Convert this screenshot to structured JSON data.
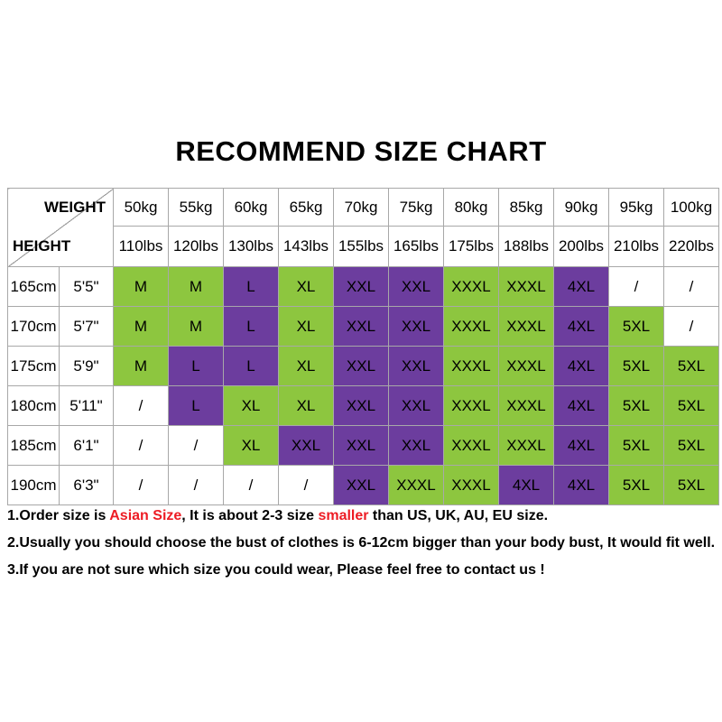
{
  "title": "RECOMMEND SIZE CHART",
  "colors": {
    "green": "#8DC63F",
    "purple": "#6C3D9E",
    "white": "#FFFFFF",
    "border": "#A8A8A8",
    "red": "#ED1C24",
    "text": "#000000"
  },
  "table": {
    "corner": {
      "top_label": "WEIGHT",
      "bottom_label": "HEIGHT"
    },
    "weight_kg": [
      "50kg",
      "55kg",
      "60kg",
      "65kg",
      "70kg",
      "75kg",
      "80kg",
      "85kg",
      "90kg",
      "95kg",
      "100kg"
    ],
    "weight_lbs": [
      "110lbs",
      "120lbs",
      "130lbs",
      "143lbs",
      "155lbs",
      "165lbs",
      "175lbs",
      "188lbs",
      "200lbs",
      "210lbs",
      "220lbs"
    ],
    "rows": [
      {
        "height_cm": "165cm",
        "height_ft": "5'5\"",
        "cells": [
          {
            "label": "M",
            "color": "green"
          },
          {
            "label": "M",
            "color": "green"
          },
          {
            "label": "L",
            "color": "purple"
          },
          {
            "label": "XL",
            "color": "green"
          },
          {
            "label": "XXL",
            "color": "purple"
          },
          {
            "label": "XXL",
            "color": "purple"
          },
          {
            "label": "XXXL",
            "color": "green"
          },
          {
            "label": "XXXL",
            "color": "green"
          },
          {
            "label": "4XL",
            "color": "purple"
          },
          {
            "label": "/",
            "color": "white"
          },
          {
            "label": "/",
            "color": "white"
          }
        ]
      },
      {
        "height_cm": "170cm",
        "height_ft": "5'7\"",
        "cells": [
          {
            "label": "M",
            "color": "green"
          },
          {
            "label": "M",
            "color": "green"
          },
          {
            "label": "L",
            "color": "purple"
          },
          {
            "label": "XL",
            "color": "green"
          },
          {
            "label": "XXL",
            "color": "purple"
          },
          {
            "label": "XXL",
            "color": "purple"
          },
          {
            "label": "XXXL",
            "color": "green"
          },
          {
            "label": "XXXL",
            "color": "green"
          },
          {
            "label": "4XL",
            "color": "purple"
          },
          {
            "label": "5XL",
            "color": "green"
          },
          {
            "label": "/",
            "color": "white"
          }
        ]
      },
      {
        "height_cm": "175cm",
        "height_ft": "5'9\"",
        "cells": [
          {
            "label": "M",
            "color": "green"
          },
          {
            "label": "L",
            "color": "purple"
          },
          {
            "label": "L",
            "color": "purple"
          },
          {
            "label": "XL",
            "color": "green"
          },
          {
            "label": "XXL",
            "color": "purple"
          },
          {
            "label": "XXL",
            "color": "purple"
          },
          {
            "label": "XXXL",
            "color": "green"
          },
          {
            "label": "XXXL",
            "color": "green"
          },
          {
            "label": "4XL",
            "color": "purple"
          },
          {
            "label": "5XL",
            "color": "green"
          },
          {
            "label": "5XL",
            "color": "green"
          }
        ]
      },
      {
        "height_cm": "180cm",
        "height_ft": "5'11\"",
        "cells": [
          {
            "label": "/",
            "color": "white"
          },
          {
            "label": "L",
            "color": "purple"
          },
          {
            "label": "XL",
            "color": "green"
          },
          {
            "label": "XL",
            "color": "green"
          },
          {
            "label": "XXL",
            "color": "purple"
          },
          {
            "label": "XXL",
            "color": "purple"
          },
          {
            "label": "XXXL",
            "color": "green"
          },
          {
            "label": "XXXL",
            "color": "green"
          },
          {
            "label": "4XL",
            "color": "purple"
          },
          {
            "label": "5XL",
            "color": "green"
          },
          {
            "label": "5XL",
            "color": "green"
          }
        ]
      },
      {
        "height_cm": "185cm",
        "height_ft": "6'1\"",
        "cells": [
          {
            "label": "/",
            "color": "white"
          },
          {
            "label": "/",
            "color": "white"
          },
          {
            "label": "XL",
            "color": "green"
          },
          {
            "label": "XXL",
            "color": "purple"
          },
          {
            "label": "XXL",
            "color": "purple"
          },
          {
            "label": "XXL",
            "color": "purple"
          },
          {
            "label": "XXXL",
            "color": "green"
          },
          {
            "label": "XXXL",
            "color": "green"
          },
          {
            "label": "4XL",
            "color": "purple"
          },
          {
            "label": "5XL",
            "color": "green"
          },
          {
            "label": "5XL",
            "color": "green"
          }
        ]
      },
      {
        "height_cm": "190cm",
        "height_ft": "6'3\"",
        "cells": [
          {
            "label": "/",
            "color": "white"
          },
          {
            "label": "/",
            "color": "white"
          },
          {
            "label": "/",
            "color": "white"
          },
          {
            "label": "/",
            "color": "white"
          },
          {
            "label": "XXL",
            "color": "purple"
          },
          {
            "label": "XXXL",
            "color": "green"
          },
          {
            "label": "XXXL",
            "color": "green"
          },
          {
            "label": "4XL",
            "color": "purple"
          },
          {
            "label": "4XL",
            "color": "purple"
          },
          {
            "label": "5XL",
            "color": "green"
          },
          {
            "label": "5XL",
            "color": "green"
          }
        ]
      }
    ]
  },
  "notes": [
    {
      "segments": [
        {
          "text": "1.Order size is ",
          "color": "black"
        },
        {
          "text": "Asian Size",
          "color": "red"
        },
        {
          "text": ", It is about 2-3 size ",
          "color": "black"
        },
        {
          "text": "smaller",
          "color": "red"
        },
        {
          "text": " than US, UK, AU, EU size.",
          "color": "black"
        }
      ]
    },
    {
      "segments": [
        {
          "text": "2.Usually you should choose the bust of clothes is 6-12cm bigger than your body bust, It would fit well.",
          "color": "black"
        }
      ]
    },
    {
      "segments": [
        {
          "text": "3.If you are not sure which size you could wear, Please feel free to contact us !",
          "color": "black"
        }
      ]
    }
  ],
  "chart_data": {
    "type": "table",
    "title": "RECOMMEND SIZE CHART",
    "weight_kg": [
      "50kg",
      "55kg",
      "60kg",
      "65kg",
      "70kg",
      "75kg",
      "80kg",
      "85kg",
      "90kg",
      "95kg",
      "100kg"
    ],
    "weight_lbs": [
      "110lbs",
      "120lbs",
      "130lbs",
      "143lbs",
      "155lbs",
      "165lbs",
      "175lbs",
      "188lbs",
      "200lbs",
      "210lbs",
      "220lbs"
    ],
    "heights": [
      [
        "165cm",
        "5'5\""
      ],
      [
        "170cm",
        "5'7\""
      ],
      [
        "175cm",
        "5'9\""
      ],
      [
        "180cm",
        "5'11\""
      ],
      [
        "185cm",
        "6'1\""
      ],
      [
        "190cm",
        "6'3\""
      ]
    ],
    "sizes": [
      [
        "M",
        "M",
        "L",
        "XL",
        "XXL",
        "XXL",
        "XXXL",
        "XXXL",
        "4XL",
        "/",
        "/"
      ],
      [
        "M",
        "M",
        "L",
        "XL",
        "XXL",
        "XXL",
        "XXXL",
        "XXXL",
        "4XL",
        "5XL",
        "/"
      ],
      [
        "M",
        "L",
        "L",
        "XL",
        "XXL",
        "XXL",
        "XXXL",
        "XXXL",
        "4XL",
        "5XL",
        "5XL"
      ],
      [
        "/",
        "L",
        "XL",
        "XL",
        "XXL",
        "XXL",
        "XXXL",
        "XXXL",
        "4XL",
        "5XL",
        "5XL"
      ],
      [
        "/",
        "/",
        "XL",
        "XXL",
        "XXL",
        "XXL",
        "XXXL",
        "XXXL",
        "4XL",
        "5XL",
        "5XL"
      ],
      [
        "/",
        "/",
        "/",
        "/",
        "XXL",
        "XXXL",
        "XXXL",
        "4XL",
        "4XL",
        "5XL",
        "5XL"
      ]
    ],
    "cell_colors": [
      [
        "green",
        "green",
        "purple",
        "green",
        "purple",
        "purple",
        "green",
        "green",
        "purple",
        "white",
        "white"
      ],
      [
        "green",
        "green",
        "purple",
        "green",
        "purple",
        "purple",
        "green",
        "green",
        "purple",
        "green",
        "white"
      ],
      [
        "green",
        "purple",
        "purple",
        "green",
        "purple",
        "purple",
        "green",
        "green",
        "purple",
        "green",
        "green"
      ],
      [
        "white",
        "purple",
        "green",
        "green",
        "purple",
        "purple",
        "green",
        "green",
        "purple",
        "green",
        "green"
      ],
      [
        "white",
        "white",
        "green",
        "purple",
        "purple",
        "purple",
        "green",
        "green",
        "purple",
        "green",
        "green"
      ],
      [
        "white",
        "white",
        "white",
        "white",
        "purple",
        "green",
        "green",
        "purple",
        "purple",
        "green",
        "green"
      ]
    ],
    "size_color_legend": {
      "M": "green",
      "L": "purple",
      "XL": "green",
      "XXL": "purple",
      "XXXL": "green",
      "4XL": "purple",
      "5XL": "green",
      "/": "white"
    }
  }
}
